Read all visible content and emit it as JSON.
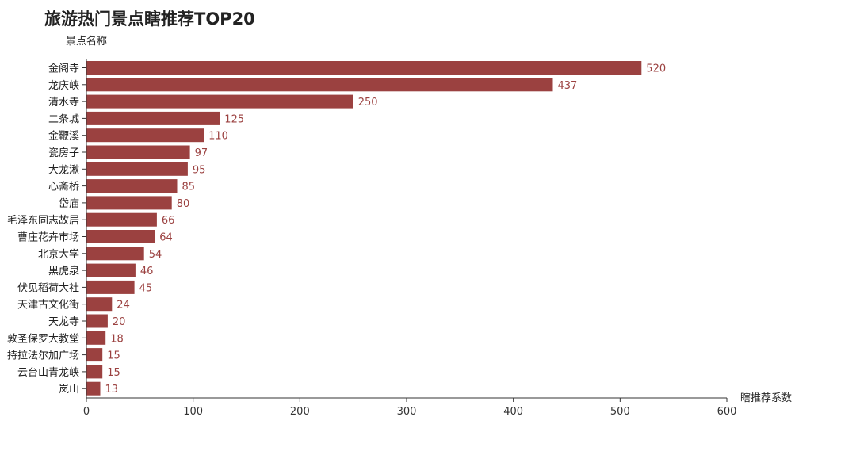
{
  "chart_data": {
    "type": "bar",
    "orientation": "horizontal",
    "title": "旅游热门景点瞎推荐TOP20",
    "ylabel": "景点名称",
    "xlabel": "瞎推荐系数",
    "xlim": [
      0,
      600
    ],
    "xticks": [
      "0",
      "100",
      "200",
      "300",
      "400",
      "500",
      "600"
    ],
    "grid": false,
    "bar_color": "#9b4140",
    "value_label_color": "#9b4140",
    "categories": [
      "金阁寺",
      "龙庆峡",
      "清水寺",
      "二条城",
      "金鞭溪",
      "瓷房子",
      "大龙湫",
      "心斋桥",
      "岱庙",
      "毛泽东同志故居",
      "曹庄花卉市场",
      "北京大学",
      "黑虎泉",
      "伏见稻荷大社",
      "天津古文化街",
      "天龙寺",
      "敦圣保罗大教堂",
      "持拉法尔加广场",
      "云台山青龙峡",
      "岚山"
    ],
    "values": [
      520,
      437,
      250,
      125,
      110,
      97,
      95,
      85,
      80,
      66,
      64,
      54,
      46,
      45,
      24,
      20,
      18,
      15,
      15,
      13
    ]
  }
}
